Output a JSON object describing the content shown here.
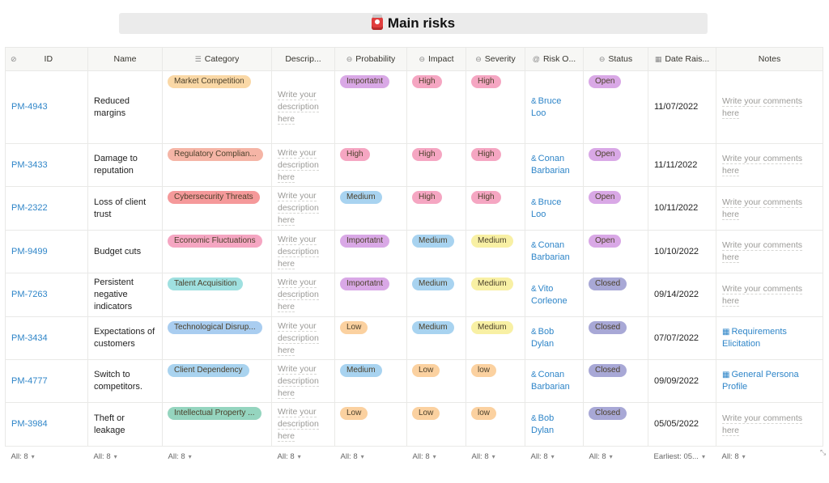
{
  "title": "Main risks",
  "columns": [
    {
      "label": "ID",
      "icon": "⊘"
    },
    {
      "label": "Name",
      "icon": ""
    },
    {
      "label": "Category",
      "icon": "☰"
    },
    {
      "label": "Descrip...",
      "icon": ""
    },
    {
      "label": "Probability",
      "icon": "⊖"
    },
    {
      "label": "Impact",
      "icon": "⊖"
    },
    {
      "label": "Severity",
      "icon": "⊖"
    },
    {
      "label": "Risk O...",
      "icon": "@"
    },
    {
      "label": "Status",
      "icon": "⊖"
    },
    {
      "label": "Date Rais...",
      "icon": "▦"
    },
    {
      "label": "Notes",
      "icon": ""
    }
  ],
  "placeholder_desc": "Write your description here",
  "placeholder_notes": "Write your comments here",
  "colors": {
    "orange": "#fad8a6",
    "pink_red": "#f6b5b5",
    "salmon": "#f5a6a0",
    "red": "#f5999a",
    "teal": "#9fe0e0",
    "blue": "#b6d6f5",
    "lightblue": "#a9d3ef",
    "green": "#95d5bf",
    "purple": "#d9a8e6",
    "pink": "#f5a6c2",
    "medium_blue": "#a8d3f0",
    "yellow": "#f8f0a4",
    "open": "#d9a8e6",
    "closed": "#a8a8d6",
    "low": "#fbd1a0"
  },
  "rows": [
    {
      "id": "PM-4943",
      "name": "Reduced margins",
      "category": {
        "label": "Market Competition",
        "color": "#fad8a6"
      },
      "probability": {
        "label": "Importatnt",
        "color": "#d9a8e6"
      },
      "impact": {
        "label": "High",
        "color": "#f5a6c2"
      },
      "severity": {
        "label": "High",
        "color": "#f5a6c2"
      },
      "owner": "Bruce Loo",
      "status": {
        "label": "Open",
        "color": "#d9a8e6"
      },
      "date": "11/07/2022",
      "notes": ""
    },
    {
      "id": "PM-3433",
      "name": "Damage to reputation",
      "category": {
        "label": "Regulatory Complian...",
        "color": "#f5b5a6"
      },
      "probability": {
        "label": "High",
        "color": "#f5a6c2"
      },
      "impact": {
        "label": "High",
        "color": "#f5a6c2"
      },
      "severity": {
        "label": "High",
        "color": "#f5a6c2"
      },
      "owner": "Conan Barbarian",
      "status": {
        "label": "Open",
        "color": "#d9a8e6"
      },
      "date": "11/11/2022",
      "notes": ""
    },
    {
      "id": "PM-2322",
      "name": "Loss of client trust",
      "category": {
        "label": "Cybersecurity Threats",
        "color": "#f5999a"
      },
      "probability": {
        "label": "Medium",
        "color": "#a8d3f0"
      },
      "impact": {
        "label": "High",
        "color": "#f5a6c2"
      },
      "severity": {
        "label": "High",
        "color": "#f5a6c2"
      },
      "owner": "Bruce Loo",
      "status": {
        "label": "Open",
        "color": "#d9a8e6"
      },
      "date": "10/11/2022",
      "notes": ""
    },
    {
      "id": "PM-9499",
      "name": "Budget cuts",
      "category": {
        "label": "Economic Fluctuations",
        "color": "#f5a6c2"
      },
      "probability": {
        "label": "Importatnt",
        "color": "#d9a8e6"
      },
      "impact": {
        "label": "Medium",
        "color": "#a8d3f0"
      },
      "severity": {
        "label": "Medium",
        "color": "#f8f0a4"
      },
      "owner": "Conan Barbarian",
      "status": {
        "label": "Open",
        "color": "#d9a8e6"
      },
      "date": "10/10/2022",
      "notes": ""
    },
    {
      "id": "PM-7263",
      "name": "Persistent negative indicators",
      "category": {
        "label": "Talent Acquisition",
        "color": "#9fe0e0"
      },
      "probability": {
        "label": "Importatnt",
        "color": "#d9a8e6"
      },
      "impact": {
        "label": "Medium",
        "color": "#a8d3f0"
      },
      "severity": {
        "label": "Medium",
        "color": "#f8f0a4"
      },
      "owner": "Vito Corleone",
      "status": {
        "label": "Closed",
        "color": "#a8a8d6"
      },
      "date": "09/14/2022",
      "notes": ""
    },
    {
      "id": "PM-3434",
      "name": "Expectations of customers",
      "category": {
        "label": "Technological Disrup...",
        "color": "#a9cdf0"
      },
      "probability": {
        "label": "Low",
        "color": "#fbd1a0"
      },
      "impact": {
        "label": "Medium",
        "color": "#a8d3f0"
      },
      "severity": {
        "label": "Medium",
        "color": "#f8f0a4"
      },
      "owner": "Bob Dylan",
      "status": {
        "label": "Closed",
        "color": "#a8a8d6"
      },
      "date": "07/07/2022",
      "notes": "Requirements Elicitation"
    },
    {
      "id": "PM-4777",
      "name": "Switch to competitors.",
      "category": {
        "label": "Client Dependency",
        "color": "#a9d3ef"
      },
      "probability": {
        "label": "Medium",
        "color": "#a8d3f0"
      },
      "impact": {
        "label": "Low",
        "color": "#fbd1a0"
      },
      "severity": {
        "label": "low",
        "color": "#fbd1a0"
      },
      "owner": "Conan Barbarian",
      "status": {
        "label": "Closed",
        "color": "#a8a8d6"
      },
      "date": "09/09/2022",
      "notes": "General Persona Profile"
    },
    {
      "id": "PM-3984",
      "name": "Theft or leakage",
      "category": {
        "label": "Intellectual Property ...",
        "color": "#95d5bf"
      },
      "probability": {
        "label": "Low",
        "color": "#fbd1a0"
      },
      "impact": {
        "label": "Low",
        "color": "#fbd1a0"
      },
      "severity": {
        "label": "low",
        "color": "#fbd1a0"
      },
      "owner": "Bob Dylan",
      "status": {
        "label": "Closed",
        "color": "#a8a8d6"
      },
      "date": "05/05/2022",
      "notes": ""
    }
  ],
  "footer": [
    "All: 8",
    "All: 8",
    "All: 8",
    "All: 8",
    "All: 8",
    "All: 8",
    "All: 8",
    "All: 8",
    "All: 8",
    "Earliest: 05...",
    "All: 8"
  ]
}
